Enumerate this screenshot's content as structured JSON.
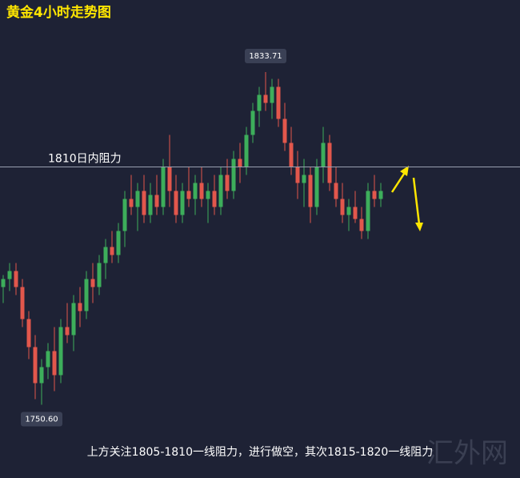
{
  "chart_data": {
    "type": "candlestick",
    "title": "黄金4小时走势图",
    "ylim": [
      1732.3,
      1851.7
    ],
    "up_color": "#3dae5b",
    "down_color": "#e2574c",
    "open": [
      1780,
      1782,
      1784,
      1780,
      1772,
      1765,
      1756,
      1760,
      1764,
      1758,
      1770,
      1768,
      1776,
      1774,
      1782,
      1780,
      1786,
      1790,
      1788,
      1794,
      1802,
      1800,
      1804,
      1798,
      1803,
      1800,
      1810,
      1804,
      1798,
      1804,
      1802,
      1806,
      1802,
      1804,
      1800,
      1808,
      1804,
      1812,
      1810,
      1818,
      1824,
      1828,
      1826,
      1830,
      1822,
      1816,
      1810,
      1806,
      1808,
      1800,
      1810,
      1816,
      1806,
      1802,
      1798,
      1800,
      1797,
      1794,
      1804,
      1802
    ],
    "high": [
      1783,
      1786,
      1786,
      1782,
      1774,
      1768,
      1762,
      1766,
      1770,
      1772,
      1776,
      1778,
      1780,
      1784,
      1786,
      1788,
      1792,
      1794,
      1796,
      1804,
      1808,
      1806,
      1808,
      1806,
      1808,
      1812,
      1818,
      1808,
      1806,
      1810,
      1808,
      1810,
      1806,
      1808,
      1810,
      1812,
      1814,
      1816,
      1820,
      1826,
      1830,
      1833.71,
      1832,
      1832,
      1826,
      1820,
      1814,
      1812,
      1810,
      1812,
      1820,
      1818,
      1810,
      1806,
      1802,
      1804,
      1800,
      1806,
      1808,
      1806
    ],
    "low": [
      1776,
      1779,
      1778,
      1770,
      1762,
      1752,
      1750.6,
      1757,
      1754,
      1756,
      1766,
      1764,
      1770,
      1772,
      1776,
      1778,
      1782,
      1786,
      1786,
      1790,
      1798,
      1794,
      1796,
      1796,
      1798,
      1798,
      1800,
      1796,
      1796,
      1800,
      1798,
      1800,
      1796,
      1798,
      1798,
      1802,
      1802,
      1806,
      1808,
      1816,
      1820,
      1824,
      1822,
      1820,
      1814,
      1808,
      1802,
      1800,
      1796,
      1798,
      1806,
      1804,
      1800,
      1796,
      1794,
      1796,
      1792,
      1792,
      1800,
      1800
    ],
    "close": [
      1782,
      1784,
      1780,
      1772,
      1765,
      1756,
      1760,
      1764,
      1758,
      1770,
      1768,
      1776,
      1774,
      1782,
      1780,
      1786,
      1790,
      1788,
      1794,
      1802,
      1800,
      1804,
      1798,
      1803,
      1800,
      1810,
      1804,
      1798,
      1804,
      1802,
      1806,
      1802,
      1804,
      1800,
      1808,
      1804,
      1812,
      1810,
      1818,
      1824,
      1828,
      1826,
      1830,
      1822,
      1816,
      1810,
      1806,
      1808,
      1800,
      1810,
      1816,
      1806,
      1802,
      1798,
      1800,
      1797,
      1794,
      1804,
      1802,
      1804
    ],
    "annotations": [
      {
        "value": 1810,
        "label": "1810日内阻力"
      },
      {
        "value": 1833.71,
        "label": "1833.71"
      },
      {
        "value": 1750.6,
        "label": "1750.60"
      }
    ],
    "footer": "上方关注1805-1810一线阻力，进行做空，其次1815-1820一线阻力",
    "watermark": "汇外网"
  }
}
